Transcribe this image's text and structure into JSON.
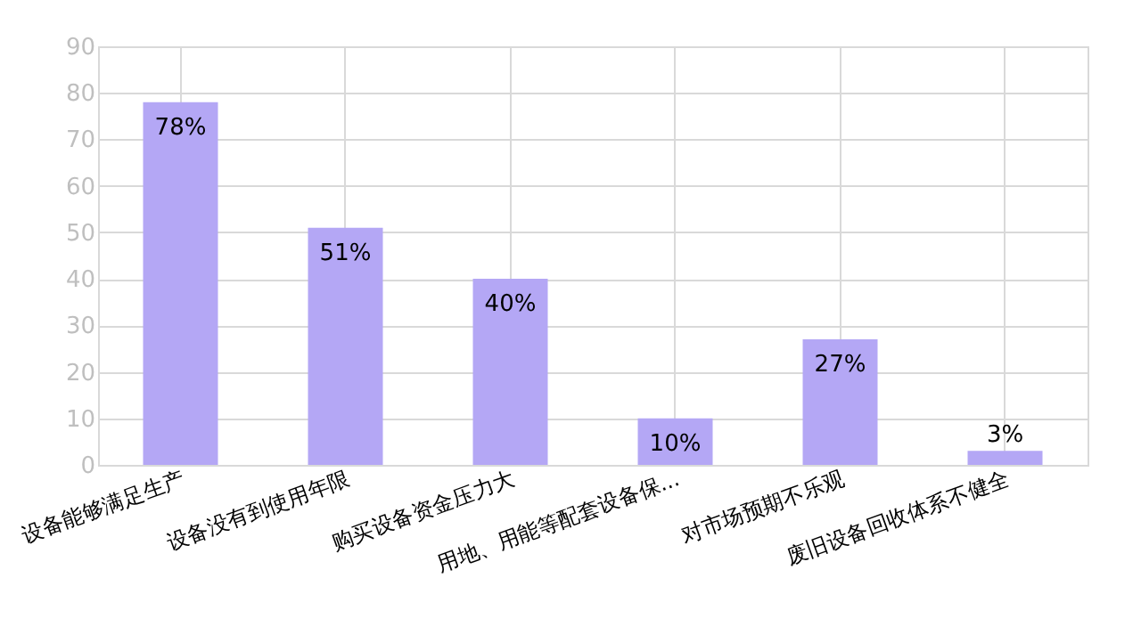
{
  "chart_data": {
    "type": "bar",
    "categories": [
      "设备能够满足生产",
      "设备没有到使用年限",
      "购买设备资金压力大",
      "用地、用能等配套设备保...",
      "对市场预期不乐观",
      "废旧设备回收体系不健全"
    ],
    "values": [
      78,
      51,
      40,
      10,
      27,
      3
    ],
    "value_labels": [
      "78%",
      "51%",
      "40%",
      "10%",
      "27%",
      "3%"
    ],
    "color": "#b4a7f5",
    "ylim": [
      0,
      90
    ],
    "yticks": [
      0,
      10,
      20,
      30,
      40,
      50,
      60,
      70,
      80,
      90
    ],
    "grid": true
  }
}
